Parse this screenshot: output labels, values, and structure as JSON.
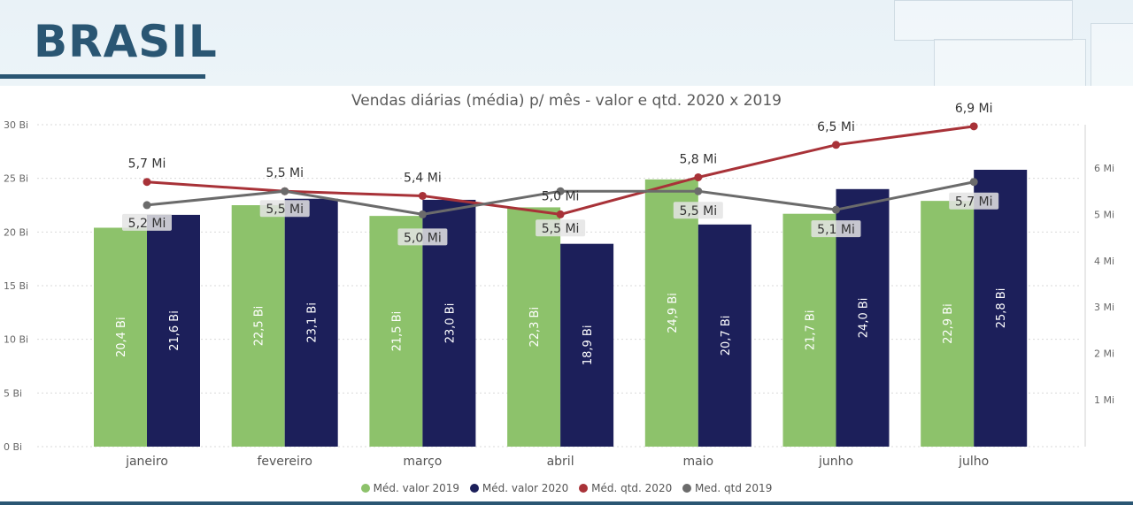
{
  "header": {
    "title": "BRASIL"
  },
  "chart_data": {
    "type": "bar",
    "title": "Vendas diárias (média) p/ mês - valor e qtd. 2020 x 2019",
    "categories": [
      "janeiro",
      "fevereiro",
      "março",
      "abril",
      "maio",
      "junho",
      "julho"
    ],
    "bar_series": [
      {
        "name": "Méd. valor 2019",
        "values": [
          20.4,
          22.5,
          21.5,
          22.3,
          24.9,
          21.7,
          22.9
        ],
        "labels": [
          "20,4 Bi",
          "22,5 Bi",
          "21,5 Bi",
          "22,3 Bi",
          "24,9 Bi",
          "21,7 Bi",
          "22,9 Bi"
        ],
        "color": "#8dc26b"
      },
      {
        "name": "Méd. valor 2020",
        "values": [
          21.6,
          23.1,
          23.0,
          18.9,
          20.7,
          24.0,
          25.8
        ],
        "labels": [
          "21,6 Bi",
          "23,1 Bi",
          "23,0 Bi",
          "18,9 Bi",
          "20,7 Bi",
          "24,0 Bi",
          "25,8 Bi"
        ],
        "color": "#1c1f5a"
      }
    ],
    "line_series": [
      {
        "name": "Méd. qtd. 2020",
        "values": [
          5.7,
          5.5,
          5.4,
          5.0,
          5.8,
          6.5,
          6.9
        ],
        "labels": [
          "5,7 Mi",
          "5,5 Mi",
          "5,4 Mi",
          "5,0 Mi",
          "5,8 Mi",
          "6,5 Mi",
          "6,9 Mi"
        ],
        "color": "#a83238"
      },
      {
        "name": "Med. qtd 2019",
        "values": [
          5.2,
          5.5,
          5.0,
          5.5,
          5.5,
          5.1,
          5.7
        ],
        "labels": [
          "5,2 Mi",
          "5,5 Mi",
          "5,0 Mi",
          "5,5 Mi",
          "5,5 Mi",
          "5,1 Mi",
          "5,7 Mi"
        ],
        "color": "#6b6b6b"
      }
    ],
    "y_left": {
      "range": [
        0,
        30
      ],
      "ticks": [
        0,
        5,
        10,
        15,
        20,
        25,
        30
      ],
      "tick_labels": [
        "0 Bi",
        "5 Bi",
        "10 Bi",
        "15 Bi",
        "20 Bi",
        "25 Bi",
        "30 Bi"
      ]
    },
    "y_right": {
      "ticks": [
        1,
        2,
        3,
        4,
        5,
        6
      ],
      "tick_labels": [
        "1 Mi",
        "2 Mi",
        "3 Mi",
        "4 Mi",
        "5 Mi",
        "6 Mi"
      ]
    },
    "grid": true,
    "legend_position": "bottom-center"
  }
}
